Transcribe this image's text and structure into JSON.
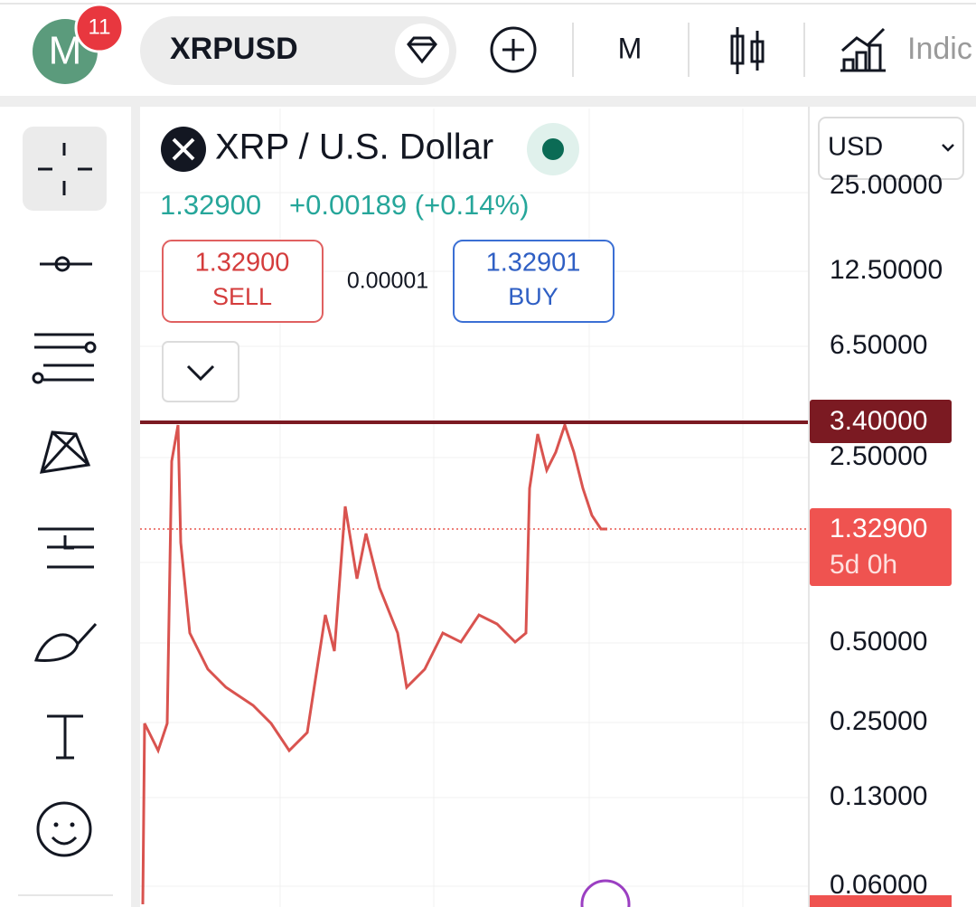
{
  "top_bar": {
    "avatar_letter": "M",
    "badge": "11",
    "symbol": "XRPUSD",
    "interval": "M",
    "indicators": "Indic"
  },
  "instrument": {
    "name": "XRP / U.S. Dollar",
    "price": "1.32900",
    "change": "+0.00189 (+0.14%)"
  },
  "trade": {
    "sell_price": "1.32900",
    "sell_label": "SELL",
    "spread": "0.00001",
    "buy_price": "1.32901",
    "buy_label": "BUY"
  },
  "currency": "USD",
  "price_axis": {
    "labels": [
      "25.00000",
      "12.50000",
      "6.50000",
      "2.50000",
      "0.50000",
      "0.25000",
      "0.13000",
      "0.06000"
    ],
    "line_label": "3.40000",
    "last_price": "1.32900",
    "countdown": "5d 0h"
  }
}
